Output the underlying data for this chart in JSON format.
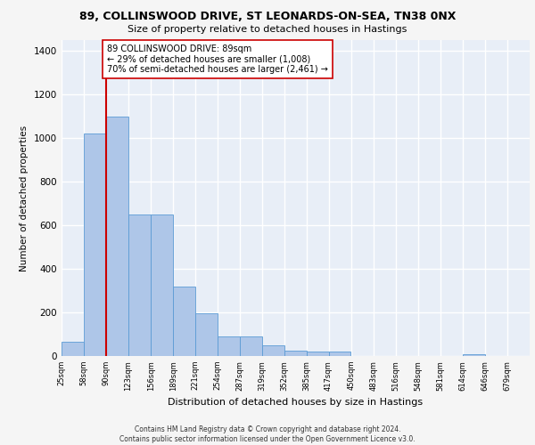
{
  "title": "89, COLLINSWOOD DRIVE, ST LEONARDS-ON-SEA, TN38 0NX",
  "subtitle": "Size of property relative to detached houses in Hastings",
  "xlabel": "Distribution of detached houses by size in Hastings",
  "ylabel": "Number of detached properties",
  "bins": [
    25,
    58,
    90,
    123,
    156,
    189,
    221,
    254,
    287,
    319,
    352,
    385,
    417,
    450,
    483,
    516,
    548,
    581,
    614,
    646,
    679
  ],
  "counts": [
    65,
    1020,
    1100,
    650,
    650,
    320,
    195,
    90,
    90,
    50,
    25,
    20,
    20,
    0,
    0,
    0,
    0,
    0,
    10,
    0,
    0
  ],
  "bar_color": "#aec6e8",
  "bar_edge_color": "#5b9bd5",
  "vline_color": "#cc0000",
  "vline_x": 90,
  "annotation_text": "89 COLLINSWOOD DRIVE: 89sqm\n← 29% of detached houses are smaller (1,008)\n70% of semi-detached houses are larger (2,461) →",
  "annotation_box_color": "#ffffff",
  "annotation_box_edge": "#cc0000",
  "ylim": [
    0,
    1450
  ],
  "yticks": [
    0,
    200,
    400,
    600,
    800,
    1000,
    1200,
    1400
  ],
  "background_color": "#e8eef7",
  "grid_color": "#ffffff",
  "fig_bg_color": "#f5f5f5",
  "footer": "Contains HM Land Registry data © Crown copyright and database right 2024.\nContains public sector information licensed under the Open Government Licence v3.0.",
  "tick_labels": [
    "25sqm",
    "58sqm",
    "90sqm",
    "123sqm",
    "156sqm",
    "189sqm",
    "221sqm",
    "254sqm",
    "287sqm",
    "319sqm",
    "352sqm",
    "385sqm",
    "417sqm",
    "450sqm",
    "483sqm",
    "516sqm",
    "548sqm",
    "581sqm",
    "614sqm",
    "646sqm",
    "679sqm"
  ]
}
